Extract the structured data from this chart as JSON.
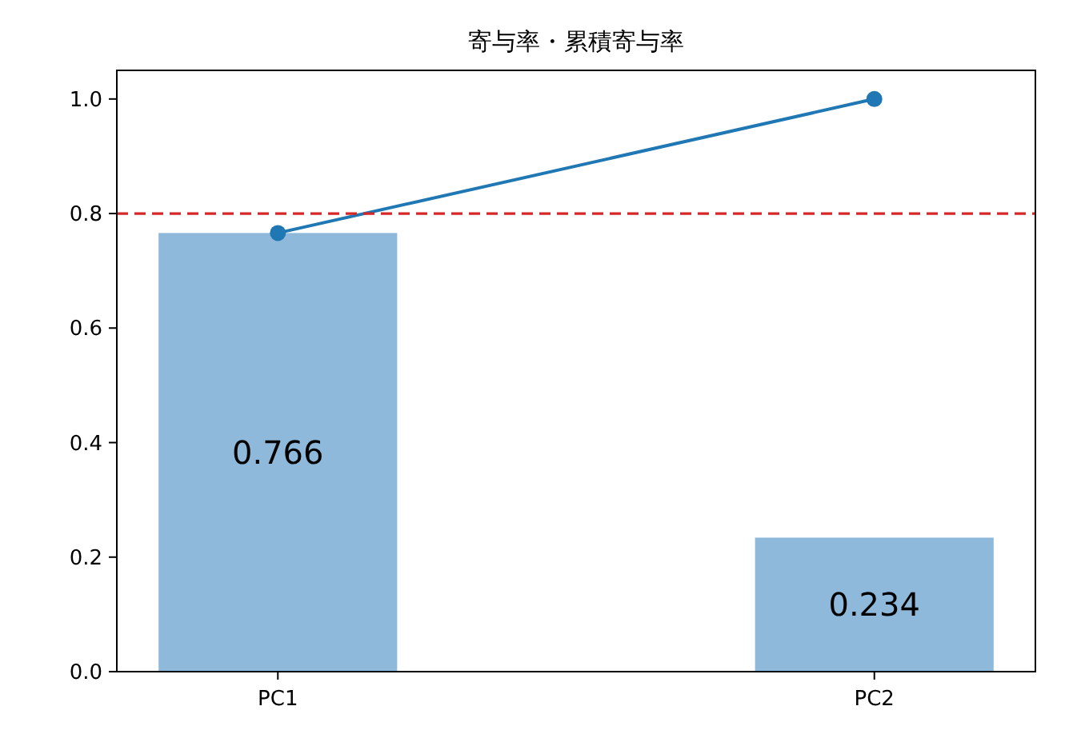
{
  "chart_data": {
    "type": "bar",
    "title": "寄与率・累積寄与率",
    "categories": [
      "PC1",
      "PC2"
    ],
    "series": [
      {
        "color": "#8fb9db",
        "values": [
          0.766,
          0.234
        ],
        "value_labels": [
          "0.766",
          "0.234"
        ]
      },
      {
        "type": "line",
        "color": "#1f77b4",
        "values": [
          0.766,
          1.0
        ],
        "marker": "circle"
      }
    ],
    "ylim": [
      0,
      1.05
    ],
    "yticks": [
      {
        "value": 0,
        "label": "0.0"
      },
      {
        "value": 0.2,
        "label": "0.2"
      },
      {
        "value": 0.4,
        "label": "0.4"
      },
      {
        "value": 0.6,
        "label": "0.6"
      },
      {
        "value": 0.8,
        "label": "0.8"
      },
      {
        "value": 1.0,
        "label": "1.0"
      }
    ],
    "ref_lines": [
      {
        "axis": "y",
        "value": 0.8,
        "color": "#d62728",
        "line_style": "dashed"
      }
    ],
    "grid": false
  }
}
